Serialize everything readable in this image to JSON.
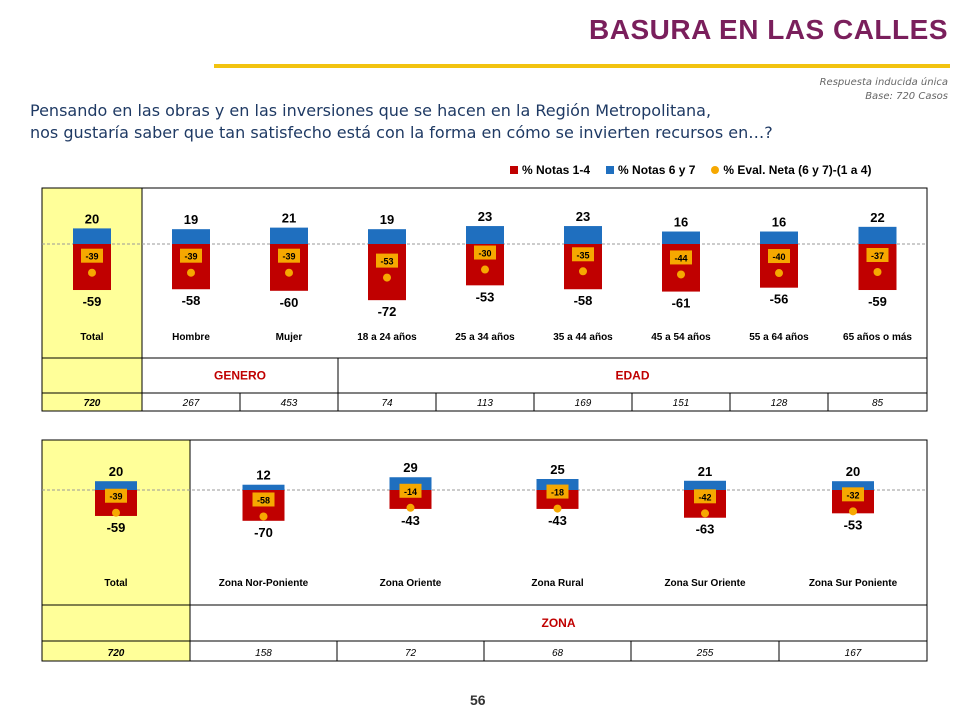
{
  "header": {
    "title": "BASURA EN LAS CALLES",
    "subtitle_1": "Respuesta inducida única",
    "subtitle_2": "Base: 720 Casos"
  },
  "question": {
    "line1": "Pensando en las obras y en las inversiones que se hacen en la Región Metropolitana,",
    "line2": "nos gustaría saber que tan satisfecho está con la forma en cómo se invierten recursos en…?"
  },
  "legend": {
    "red": "% Notas 1-4",
    "blue": "% Notas 6 y 7",
    "dot": "% Eval. Neta (6 y 7)-(1 a 4)"
  },
  "colors": {
    "red": "#c00000",
    "blue": "#1f6fbf",
    "dot": "#f6a800",
    "highlight": "#ffff99"
  },
  "chart_data": [
    {
      "type": "bar",
      "categories": [
        "Total",
        "Hombre",
        "Mujer",
        "18 a 24 años",
        "25 a 34 años",
        "35 a 44 años",
        "45 a 54 años",
        "55 a 64 años",
        "65 años o más"
      ],
      "series": [
        {
          "name": "% Notas 1-4",
          "values": [
            -59,
            -58,
            -60,
            -72,
            -53,
            -58,
            -61,
            -56,
            -59
          ]
        },
        {
          "name": "% Notas 6 y 7",
          "values": [
            20,
            19,
            21,
            19,
            23,
            23,
            16,
            16,
            22
          ]
        },
        {
          "name": "% Eval. Neta (6 y 7)-(1 a 4)",
          "values": [
            -39,
            -39,
            -39,
            -53,
            -30,
            -35,
            -44,
            -40,
            -37
          ]
        }
      ],
      "groups": [
        {
          "label": "GENERO"
        },
        {
          "label": "EDAD"
        }
      ],
      "bases": [
        "720",
        "267",
        "453",
        "74",
        "113",
        "169",
        "151",
        "128",
        "85"
      ]
    },
    {
      "type": "bar",
      "categories": [
        "Total",
        "Zona Nor-Poniente",
        "Zona Oriente",
        "Zona Rural",
        "Zona Sur Oriente",
        "Zona Sur Poniente"
      ],
      "series": [
        {
          "name": "% Notas 1-4",
          "values": [
            -59,
            -70,
            -43,
            -43,
            -63,
            -53
          ]
        },
        {
          "name": "% Notas 6 y 7",
          "values": [
            20,
            12,
            29,
            25,
            21,
            20
          ]
        },
        {
          "name": "% Eval. Neta (6 y 7)-(1 a 4)",
          "values": [
            -39,
            -58,
            -14,
            -18,
            -42,
            -32
          ]
        }
      ],
      "groups": [
        {
          "label": "ZONA"
        }
      ],
      "bases": [
        "720",
        "158",
        "72",
        "68",
        "255",
        "167"
      ]
    }
  ],
  "footer": {
    "page_number": "56"
  }
}
